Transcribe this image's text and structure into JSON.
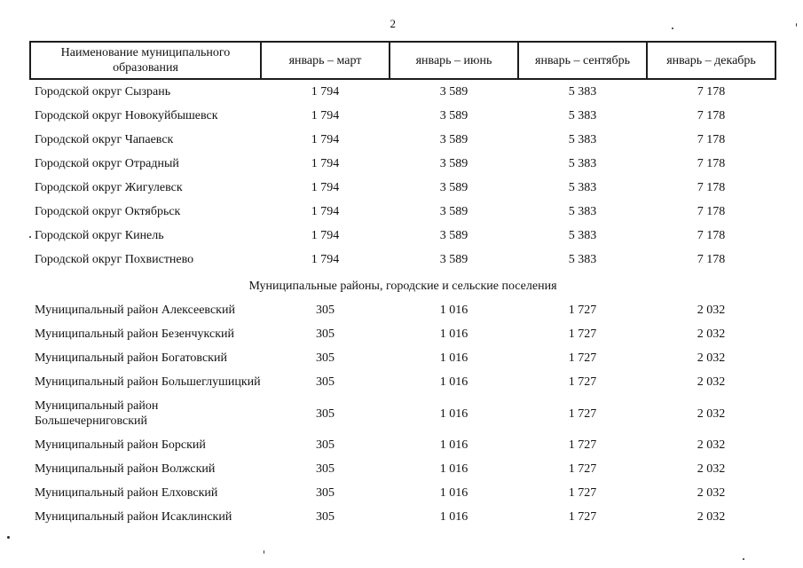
{
  "page": {
    "number": "2"
  },
  "table": {
    "headers": [
      "Наименование муниципального образования",
      "январь – март",
      "январь – июнь",
      "январь – сентябрь",
      "январь – декабрь"
    ],
    "groups": [
      {
        "title": null,
        "rows": [
          {
            "name": "Городской округ Сызрань",
            "values": [
              "1 794",
              "3 589",
              "5 383",
              "7 178"
            ]
          },
          {
            "name": "Городской округ Новокуйбышевск",
            "values": [
              "1 794",
              "3 589",
              "5 383",
              "7 178"
            ]
          },
          {
            "name": "Городской округ Чапаевск",
            "values": [
              "1 794",
              "3 589",
              "5 383",
              "7 178"
            ]
          },
          {
            "name": "Городской округ Отрадный",
            "values": [
              "1 794",
              "3 589",
              "5 383",
              "7 178"
            ]
          },
          {
            "name": "Городской округ Жигулевск",
            "values": [
              "1 794",
              "3 589",
              "5 383",
              "7 178"
            ]
          },
          {
            "name": "Городской округ Октябрьск",
            "values": [
              "1 794",
              "3 589",
              "5 383",
              "7 178"
            ]
          },
          {
            "name": "Городской округ Кинель",
            "values": [
              "1 794",
              "3 589",
              "5 383",
              "7 178"
            ]
          },
          {
            "name": "Городской округ Похвистнево",
            "values": [
              "1 794",
              "3 589",
              "5 383",
              "7 178"
            ]
          }
        ]
      },
      {
        "title": "Муниципальные районы, городские и сельские поселения",
        "rows": [
          {
            "name": "Муниципальный район Алексеевский",
            "values": [
              "305",
              "1 016",
              "1 727",
              "2 032"
            ]
          },
          {
            "name": "Муниципальный район Безенчукский",
            "values": [
              "305",
              "1 016",
              "1 727",
              "2 032"
            ]
          },
          {
            "name": "Муниципальный район Богатовский",
            "values": [
              "305",
              "1 016",
              "1 727",
              "2 032"
            ]
          },
          {
            "name": "Муниципальный район Большеглушицкий",
            "values": [
              "305",
              "1 016",
              "1 727",
              "2 032"
            ]
          },
          {
            "name": "Муниципальный район\nБольшечерниговский",
            "values": [
              "305",
              "1 016",
              "1 727",
              "2 032"
            ]
          },
          {
            "name": "Муниципальный район Борский",
            "values": [
              "305",
              "1 016",
              "1 727",
              "2 032"
            ]
          },
          {
            "name": "Муниципальный район Волжский",
            "values": [
              "305",
              "1 016",
              "1 727",
              "2 032"
            ]
          },
          {
            "name": "Муниципальный район Елховский",
            "values": [
              "305",
              "1 016",
              "1 727",
              "2 032"
            ]
          },
          {
            "name": "Муниципальный район Исаклинский",
            "values": [
              "305",
              "1 016",
              "1 727",
              "2 032"
            ]
          }
        ]
      }
    ]
  }
}
